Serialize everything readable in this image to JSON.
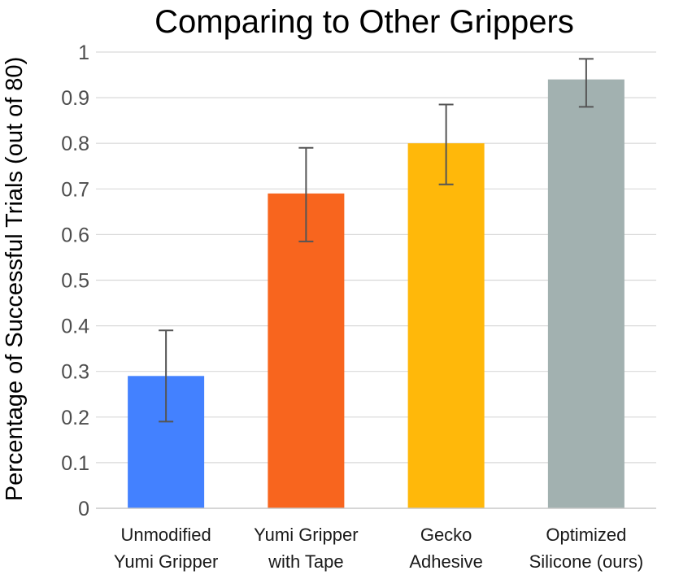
{
  "chart_data": {
    "type": "bar",
    "title": "Comparing to Other Grippers",
    "xlabel": "",
    "ylabel": "Percentage of Successful Trials (out of 80)",
    "ylim": [
      0,
      1
    ],
    "yticks": [
      "0",
      "0.1",
      "0.2",
      "0.3",
      "0.4",
      "0.5",
      "0.6",
      "0.7",
      "0.8",
      "0.9",
      "1"
    ],
    "grid": true,
    "categories": [
      [
        "Unmodified",
        "Yumi Gripper"
      ],
      [
        "Yumi Gripper",
        "with Tape"
      ],
      [
        "Gecko",
        "Adhesive"
      ],
      [
        "Optimized",
        "Silicone (ours)"
      ]
    ],
    "values": [
      0.29,
      0.69,
      0.8,
      0.94
    ],
    "error_low": [
      0.19,
      0.585,
      0.71,
      0.88
    ],
    "error_high": [
      0.39,
      0.79,
      0.885,
      0.985
    ],
    "colors": [
      "#4381ff",
      "#f8651e",
      "#ffb80a",
      "#a2b1b0"
    ]
  }
}
